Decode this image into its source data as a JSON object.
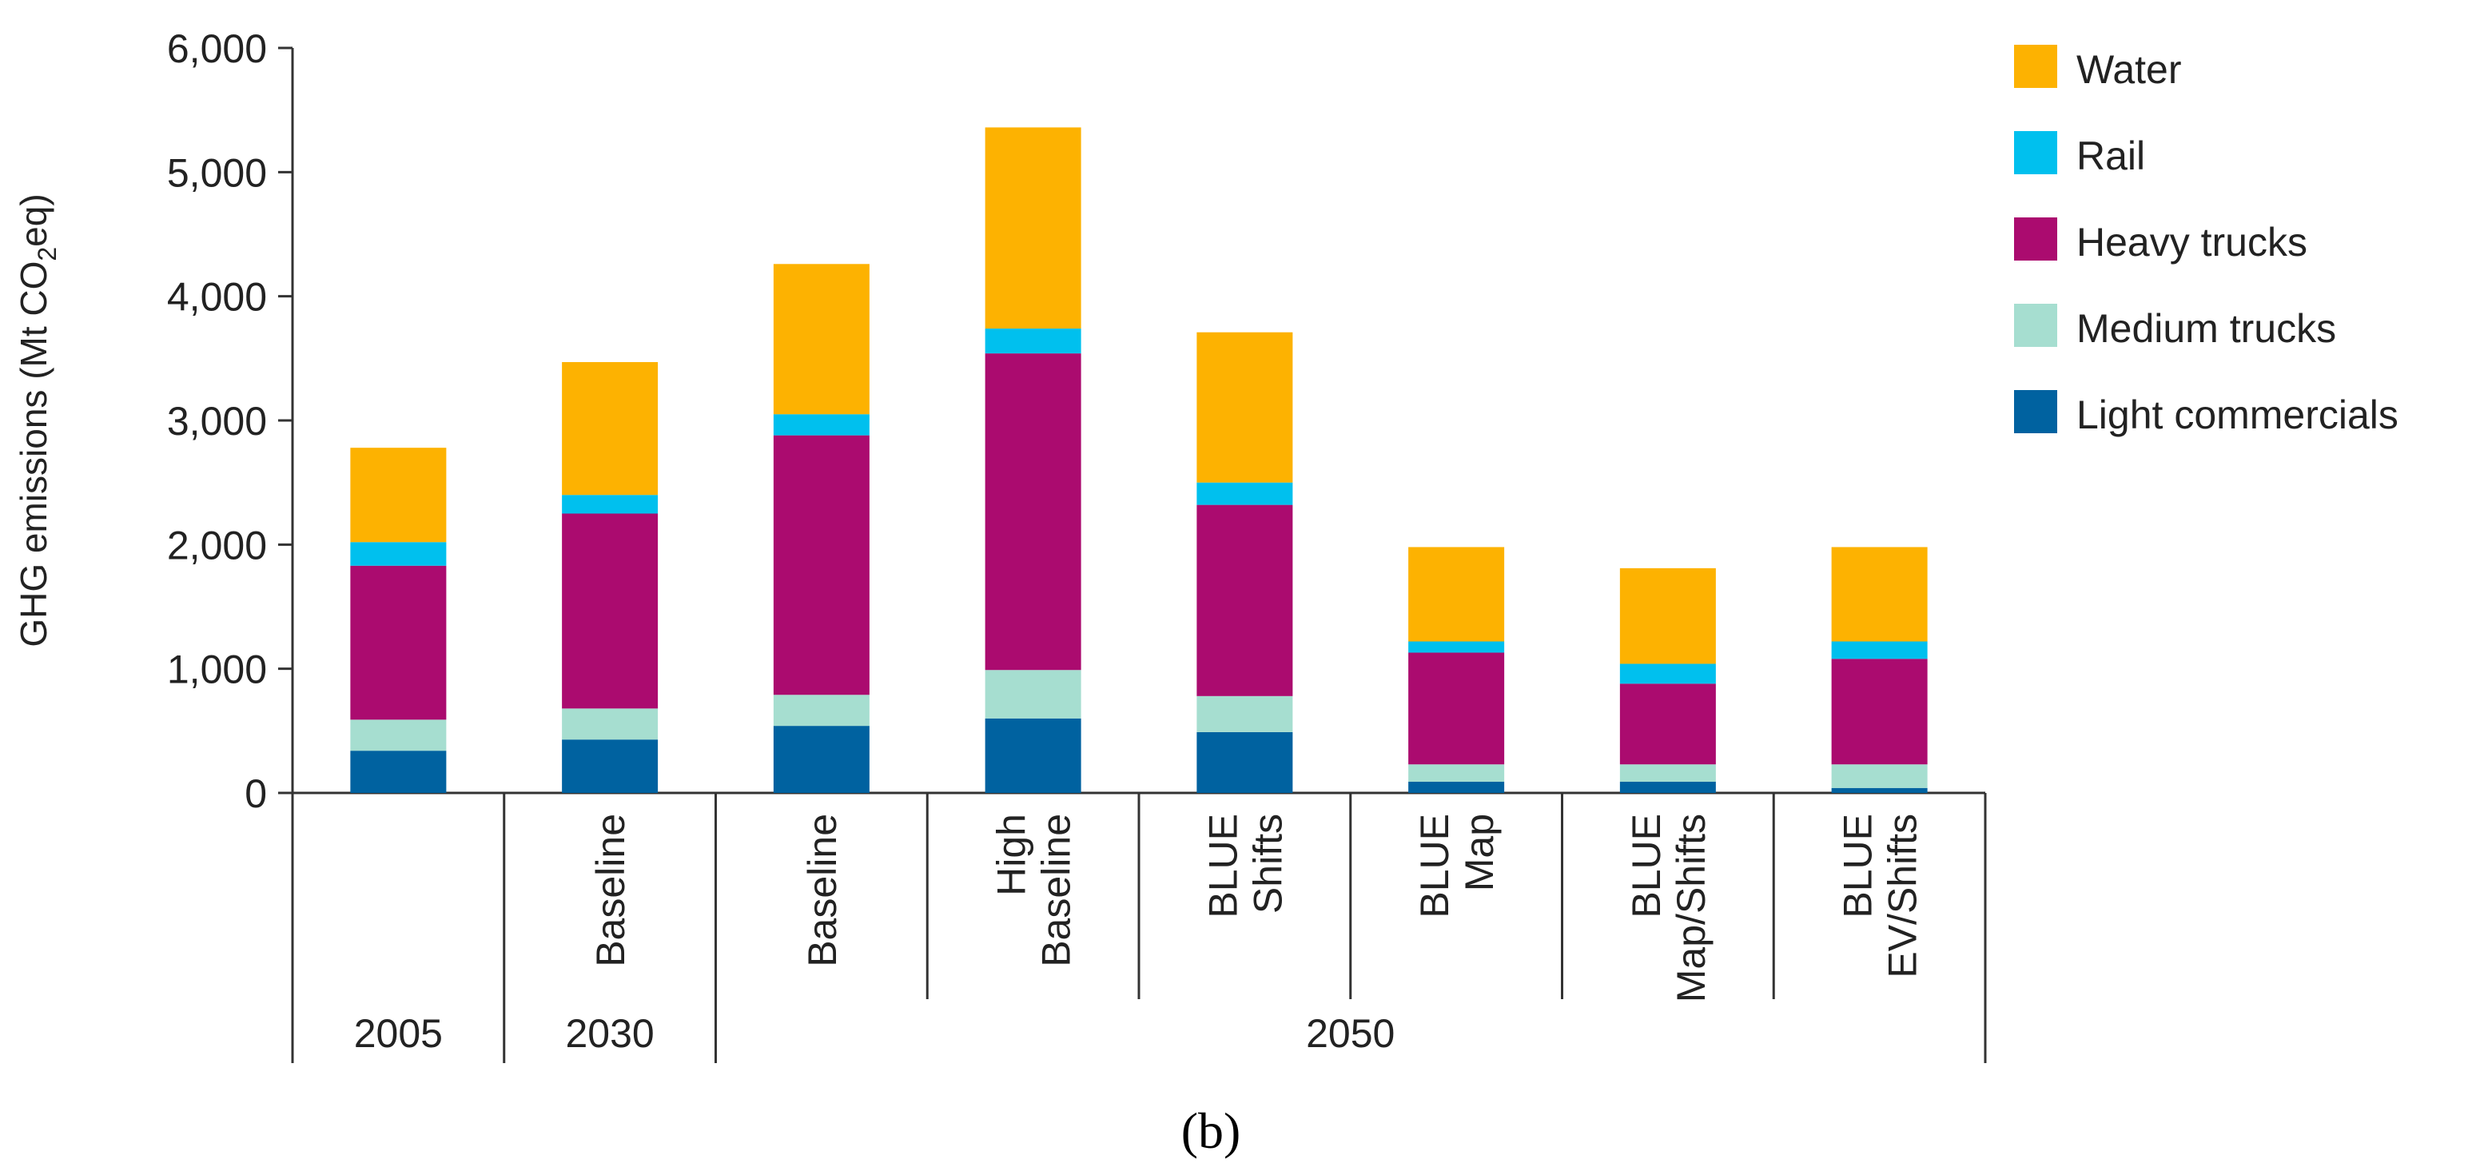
{
  "chart_data": {
    "type": "bar",
    "stacked": true,
    "ylabel_parts": [
      "GHG emissions (Mt CO",
      "2",
      "eq)"
    ],
    "ylim": [
      0,
      6000
    ],
    "yticks": [
      0,
      1000,
      2000,
      3000,
      4000,
      5000,
      6000
    ],
    "ytick_labels": [
      "0",
      "1,000",
      "2,000",
      "3,000",
      "4,000",
      "5,000",
      "6,000"
    ],
    "categories": [
      {
        "label": [],
        "year": "2005"
      },
      {
        "label": [
          "Baseline"
        ],
        "year": "2030"
      },
      {
        "label": [
          "Baseline"
        ],
        "year": "2050"
      },
      {
        "label": [
          "High",
          "Baseline"
        ],
        "year": "2050"
      },
      {
        "label": [
          "BLUE",
          "Shifts"
        ],
        "year": "2050"
      },
      {
        "label": [
          "BLUE",
          "Map"
        ],
        "year": "2050"
      },
      {
        "label": [
          "BLUE",
          "Map/Shifts"
        ],
        "year": "2050"
      },
      {
        "label": [
          "BLUE",
          "EV/Shifts"
        ],
        "year": "2050"
      }
    ],
    "year_groups": [
      {
        "label": "2005",
        "from": 0,
        "to": 0
      },
      {
        "label": "2030",
        "from": 1,
        "to": 1
      },
      {
        "label": "2050",
        "from": 2,
        "to": 7
      }
    ],
    "series": [
      {
        "name": "Light commercials",
        "color": "#0062a0",
        "values": [
          340,
          430,
          540,
          600,
          490,
          90,
          90,
          40
        ]
      },
      {
        "name": "Medium trucks",
        "color": "#a6ded0",
        "values": [
          250,
          250,
          250,
          390,
          290,
          140,
          140,
          190
        ]
      },
      {
        "name": "Heavy trucks",
        "color": "#ab0b6f",
        "values": [
          1240,
          1570,
          2090,
          2550,
          1540,
          900,
          650,
          850
        ]
      },
      {
        "name": "Rail",
        "color": "#00c0ee",
        "values": [
          190,
          150,
          170,
          200,
          180,
          90,
          160,
          140
        ]
      },
      {
        "name": "Water",
        "color": "#fdb201",
        "values": [
          760,
          1070,
          1210,
          1620,
          1210,
          760,
          770,
          760
        ]
      }
    ],
    "legend_order": [
      "Water",
      "Rail",
      "Heavy trucks",
      "Medium trucks",
      "Light commercials"
    ],
    "legend_position": "right",
    "panel_label": "(b)"
  }
}
